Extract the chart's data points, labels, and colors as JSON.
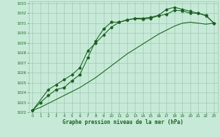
{
  "title": "Graphe pression niveau de la mer (hPa)",
  "background_color": "#c7ead8",
  "grid_color": "#9dc8b0",
  "line_color": "#1a6020",
  "xlim": [
    -0.5,
    23.5
  ],
  "ylim": [
    1022,
    1033.2
  ],
  "x_ticks": [
    0,
    1,
    2,
    3,
    4,
    5,
    6,
    7,
    8,
    9,
    10,
    11,
    12,
    13,
    14,
    15,
    16,
    17,
    18,
    19,
    20,
    21,
    22,
    23
  ],
  "y_ticks": [
    1022,
    1023,
    1024,
    1025,
    1026,
    1027,
    1028,
    1029,
    1030,
    1031,
    1032,
    1033
  ],
  "series1_x": [
    0,
    1,
    2,
    3,
    4,
    5,
    6,
    7,
    8,
    9,
    10,
    11,
    12,
    13,
    14,
    15,
    16,
    17,
    18,
    19,
    20,
    21,
    22,
    23
  ],
  "series1_y": [
    1022.2,
    1023.0,
    1023.7,
    1024.3,
    1024.5,
    1025.2,
    1025.8,
    1027.5,
    1029.2,
    1030.4,
    1031.1,
    1031.1,
    1031.35,
    1031.45,
    1031.4,
    1031.5,
    1031.75,
    1031.9,
    1032.3,
    1032.25,
    1032.0,
    1032.0,
    1031.75,
    1031.0
  ],
  "series2_x": [
    0,
    2,
    3,
    4,
    5,
    6,
    7,
    8,
    9,
    10,
    11,
    12,
    13,
    14,
    15,
    16,
    17,
    18,
    19,
    20,
    21,
    22,
    23
  ],
  "series2_y": [
    1022.2,
    1024.3,
    1024.8,
    1025.3,
    1025.8,
    1026.5,
    1028.2,
    1029.0,
    1029.8,
    1030.6,
    1031.1,
    1031.3,
    1031.5,
    1031.5,
    1031.6,
    1031.8,
    1032.4,
    1032.6,
    1032.4,
    1032.2,
    1032.0,
    1031.8,
    1031.0
  ],
  "series3_x": [
    0,
    1,
    2,
    3,
    4,
    5,
    6,
    7,
    8,
    9,
    10,
    11,
    12,
    13,
    14,
    15,
    16,
    17,
    18,
    19,
    20,
    21,
    22,
    23
  ],
  "series3_y": [
    1022.2,
    1022.5,
    1022.9,
    1023.3,
    1023.7,
    1024.1,
    1024.5,
    1025.0,
    1025.5,
    1026.1,
    1026.7,
    1027.3,
    1027.9,
    1028.4,
    1028.9,
    1029.4,
    1029.9,
    1030.3,
    1030.7,
    1031.0,
    1031.1,
    1031.0,
    1030.9,
    1031.0
  ]
}
